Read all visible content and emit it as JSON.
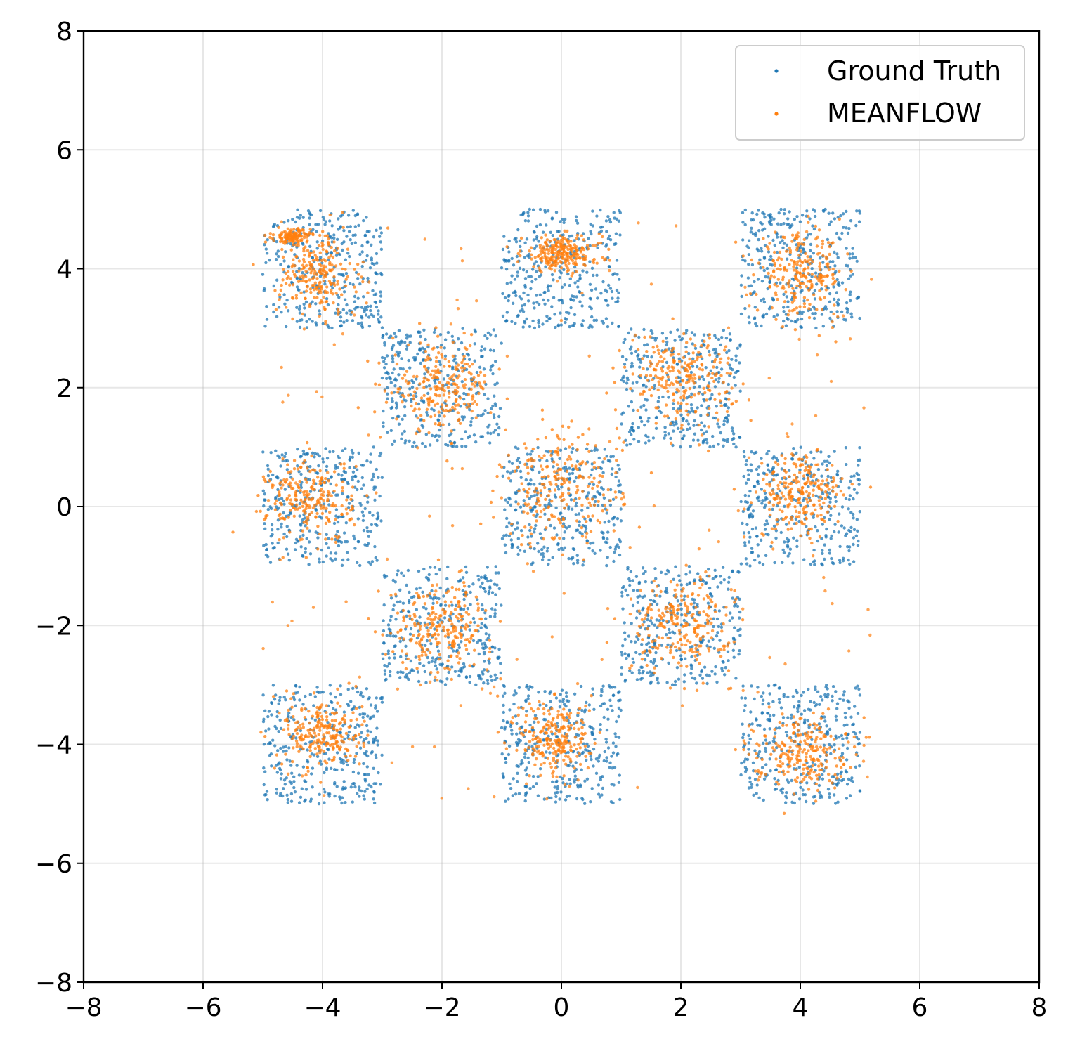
{
  "chart_data": {
    "type": "scatter",
    "title": "",
    "xlabel": "",
    "ylabel": "",
    "xlim": [
      -8,
      8
    ],
    "ylim": [
      -8,
      8
    ],
    "xticks": [
      -8,
      -6,
      -4,
      -2,
      0,
      2,
      4,
      6,
      8
    ],
    "yticks": [
      -8,
      -6,
      -4,
      -2,
      0,
      2,
      4,
      6,
      8
    ],
    "xtick_labels": [
      "−8",
      "−6",
      "−4",
      "−2",
      "0",
      "2",
      "4",
      "6",
      "8"
    ],
    "ytick_labels": [
      "−8",
      "−6",
      "−4",
      "−2",
      "0",
      "2",
      "4",
      "6",
      "8"
    ],
    "grid": true,
    "legend_position": "top-right",
    "series": [
      {
        "name": "Ground Truth",
        "color": "#1f77b4",
        "distribution": "uniform within checkerboard squares",
        "squares": [
          {
            "x": [
              -5,
              -3
            ],
            "y": [
              3,
              5
            ]
          },
          {
            "x": [
              -1,
              1
            ],
            "y": [
              3,
              5
            ]
          },
          {
            "x": [
              3,
              5
            ],
            "y": [
              3,
              5
            ]
          },
          {
            "x": [
              -3,
              -1
            ],
            "y": [
              1,
              3
            ]
          },
          {
            "x": [
              1,
              3
            ],
            "y": [
              1,
              3
            ]
          },
          {
            "x": [
              -5,
              -3
            ],
            "y": [
              -1,
              1
            ]
          },
          {
            "x": [
              -1,
              1
            ],
            "y": [
              -1,
              1
            ]
          },
          {
            "x": [
              3,
              5
            ],
            "y": [
              -1,
              1
            ]
          },
          {
            "x": [
              -3,
              -1
            ],
            "y": [
              -3,
              -1
            ]
          },
          {
            "x": [
              1,
              3
            ],
            "y": [
              -3,
              -1
            ]
          },
          {
            "x": [
              -5,
              -3
            ],
            "y": [
              -5,
              -3
            ]
          },
          {
            "x": [
              -1,
              1
            ],
            "y": [
              -5,
              -3
            ]
          },
          {
            "x": [
              3,
              5
            ],
            "y": [
              -5,
              -3
            ]
          }
        ]
      },
      {
        "name": "MEANFLOW",
        "color": "#ff7f0e",
        "distribution": "clustered samples near checkerboard squares with scattered outliers",
        "clusters": [
          {
            "center": [
              -4.1,
              3.9
            ],
            "spread": [
              0.55,
              0.6
            ]
          },
          {
            "center": [
              -4.5,
              4.55
            ],
            "spread": [
              0.25,
              0.1
            ]
          },
          {
            "center": [
              0.0,
              4.25
            ],
            "spread": [
              0.55,
              0.25
            ]
          },
          {
            "center": [
              4.0,
              3.9
            ],
            "spread": [
              0.6,
              0.55
            ]
          },
          {
            "center": [
              -2.0,
              2.0
            ],
            "spread": [
              0.7,
              0.6
            ]
          },
          {
            "center": [
              2.0,
              2.2
            ],
            "spread": [
              0.75,
              0.6
            ]
          },
          {
            "center": [
              -4.2,
              0.1
            ],
            "spread": [
              0.6,
              0.6
            ]
          },
          {
            "center": [
              0.0,
              0.3
            ],
            "spread": [
              0.85,
              0.8
            ]
          },
          {
            "center": [
              4.0,
              0.2
            ],
            "spread": [
              0.6,
              0.6
            ]
          },
          {
            "center": [
              -2.0,
              -2.0
            ],
            "spread": [
              0.7,
              0.6
            ]
          },
          {
            "center": [
              2.0,
              -2.0
            ],
            "spread": [
              0.7,
              0.65
            ]
          },
          {
            "center": [
              -4.0,
              -3.8
            ],
            "spread": [
              0.55,
              0.5
            ]
          },
          {
            "center": [
              -0.1,
              -3.9
            ],
            "spread": [
              0.5,
              0.55
            ]
          },
          {
            "center": [
              4.0,
              -4.1
            ],
            "spread": [
              0.65,
              0.5
            ]
          }
        ]
      }
    ]
  }
}
